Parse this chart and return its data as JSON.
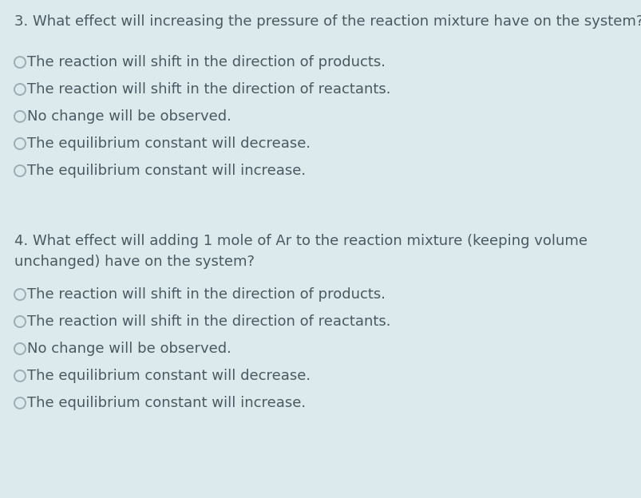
{
  "background_color": "#dce9ed",
  "text_color": "#4a5a62",
  "circle_color": "#9aadb5",
  "question3": {
    "question": "3. What effect will increasing the pressure of the reaction mixture have on the system?",
    "options": [
      "The reaction will shift in the direction of products.",
      "The reaction will shift in the direction of reactants.",
      "No change will be observed.",
      "The equilibrium constant will decrease.",
      "The equilibrium constant will increase."
    ]
  },
  "question4": {
    "question_line1": "4. What effect will adding 1 mole of Ar to the reaction mixture (keeping volume",
    "question_line2": "unchanged) have on the system?",
    "options": [
      "The reaction will shift in the direction of products.",
      "The reaction will shift in the direction of reactants.",
      "No change will be observed.",
      "The equilibrium constant will decrease.",
      "The equilibrium constant will increase."
    ]
  },
  "question_fontsize": 13.0,
  "option_fontsize": 13.0,
  "fig_width": 8.04,
  "fig_height": 6.24,
  "dpi": 100
}
